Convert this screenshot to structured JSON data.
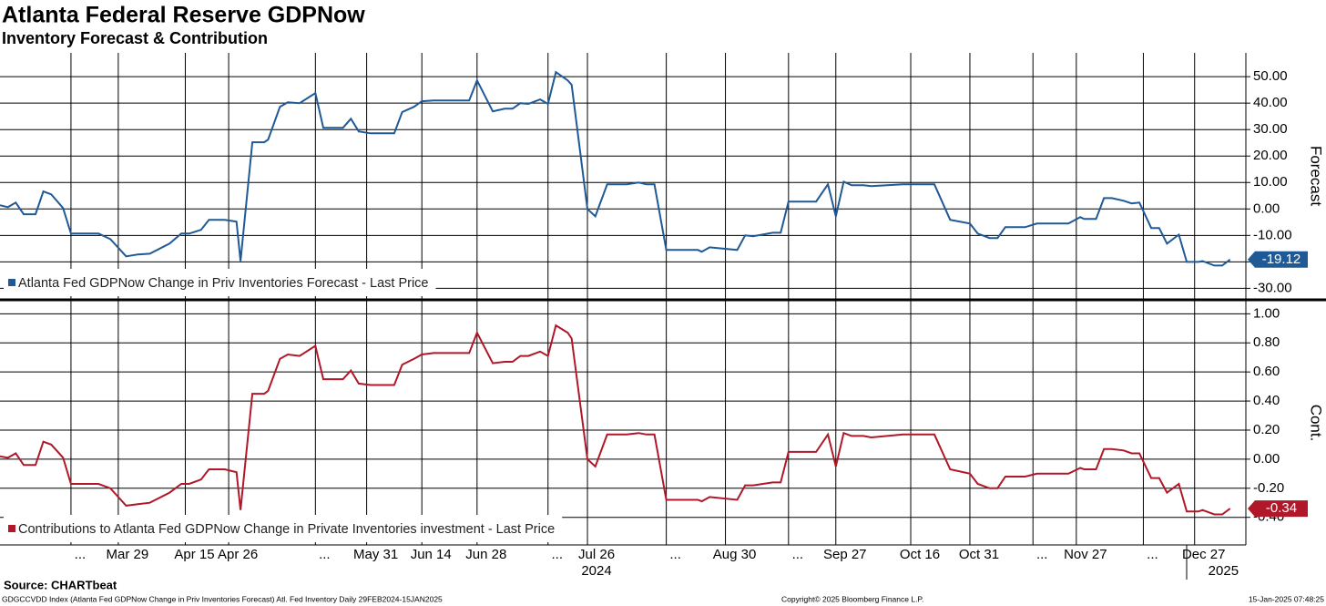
{
  "chart_data": [
    {
      "type": "line",
      "title": "Atlanta Federal Reserve GDPNow",
      "subtitle": "Inventory Forecast & Contribution",
      "y_label": "Forecast",
      "x": [
        "2024-02-28",
        "2024-03-01",
        "2024-03-03",
        "2024-03-05",
        "2024-03-08",
        "2024-03-10",
        "2024-03-12",
        "2024-03-15",
        "2024-03-17",
        "2024-03-24",
        "2024-03-27",
        "2024-03-31",
        "2024-04-03",
        "2024-04-06",
        "2024-04-11",
        "2024-04-14",
        "2024-04-16",
        "2024-04-19",
        "2024-04-21",
        "2024-04-25",
        "2024-04-28",
        "2024-04-29",
        "2024-05-02",
        "2024-05-05",
        "2024-05-06",
        "2024-05-09",
        "2024-05-11",
        "2024-05-14",
        "2024-05-18",
        "2024-05-20",
        "2024-05-25",
        "2024-05-27",
        "2024-05-29",
        "2024-06-01",
        "2024-06-07",
        "2024-06-09",
        "2024-06-12",
        "2024-06-14",
        "2024-06-17",
        "2024-06-26",
        "2024-06-28",
        "2024-07-02",
        "2024-07-05",
        "2024-07-07",
        "2024-07-09",
        "2024-07-11",
        "2024-07-14",
        "2024-07-16",
        "2024-07-18",
        "2024-07-21",
        "2024-07-22",
        "2024-07-26",
        "2024-07-28",
        "2024-07-31",
        "2024-08-05",
        "2024-08-08",
        "2024-08-10",
        "2024-08-12",
        "2024-08-15",
        "2024-08-23",
        "2024-08-24",
        "2024-08-26",
        "2024-09-02",
        "2024-09-04",
        "2024-09-06",
        "2024-09-11",
        "2024-09-13",
        "2024-09-15",
        "2024-09-22",
        "2024-09-25",
        "2024-09-27",
        "2024-09-29",
        "2024-10-01",
        "2024-10-04",
        "2024-10-06",
        "2024-10-10",
        "2024-10-14",
        "2024-10-22",
        "2024-10-26",
        "2024-10-31",
        "2024-11-02",
        "2024-11-05",
        "2024-11-07",
        "2024-11-09",
        "2024-11-14",
        "2024-11-17",
        "2024-11-25",
        "2024-11-28",
        "2024-11-29",
        "2024-12-02",
        "2024-12-04",
        "2024-12-06",
        "2024-12-09",
        "2024-12-11",
        "2024-12-13",
        "2024-12-16",
        "2024-12-18",
        "2024-12-20",
        "2024-12-23",
        "2024-12-25",
        "2024-12-28",
        "2024-12-29",
        "2025-01-01",
        "2025-01-03",
        "2025-01-05"
      ],
      "xlim": [
        "2024-02-28",
        "2025-01-09"
      ],
      "series": [
        {
          "name": "Atlanta Fed GDPNow Change in Priv Inventories Forecast - Last Price",
          "color": "#1f5a96",
          "values": [
            1.4,
            0.7,
            2.4,
            -2,
            -2,
            6.6,
            5.5,
            0.3,
            -9.3,
            -9.3,
            -11.4,
            -17.9,
            -17.2,
            -16.9,
            -13.1,
            -9.3,
            -9.3,
            -7.9,
            -4.1,
            -4.1,
            -4.8,
            -19.7,
            25.2,
            25.2,
            26.2,
            38.6,
            40.3,
            40,
            43.8,
            30.7,
            30.7,
            34.1,
            29.3,
            28.6,
            28.6,
            36.6,
            38.6,
            40.7,
            41,
            41,
            48.6,
            36.9,
            37.9,
            37.9,
            40,
            39.7,
            41.4,
            39.7,
            51.7,
            48.6,
            46.9,
            0,
            -2.8,
            9.3,
            9.3,
            10,
            9.3,
            9.3,
            -15.5,
            -15.5,
            -16.2,
            -14.5,
            -15.5,
            -10,
            -10.3,
            -9,
            -9,
            2.8,
            2.8,
            9.3,
            -2.8,
            10.3,
            9,
            9,
            8.6,
            9,
            9.3,
            9.3,
            -4.1,
            -5.5,
            -9.3,
            -11,
            -11,
            -6.9,
            -6.9,
            -5.5,
            -5.5,
            -3.1,
            -3.8,
            -3.8,
            4.1,
            4.1,
            3.1,
            2.1,
            2.4,
            -7.2,
            -7.2,
            -13.1,
            -9.7,
            -20,
            -20,
            -19.7,
            -21.4,
            -21.4,
            -19.12
          ]
        }
      ],
      "ylim": [
        -34,
        59
      ],
      "yticks": [
        {
          "value": 50,
          "label": "50.00"
        },
        {
          "value": 40,
          "label": "40.00"
        },
        {
          "value": 30,
          "label": "30.00"
        },
        {
          "value": 20,
          "label": "20.00"
        },
        {
          "value": 10,
          "label": "10.00"
        },
        {
          "value": 0,
          "label": "0.00"
        },
        {
          "value": -10,
          "label": "-10.00"
        },
        {
          "value": -20,
          "label": "-20.00"
        },
        {
          "value": -30,
          "label": "-30.00"
        }
      ],
      "grid": true
    },
    {
      "type": "line",
      "y_label": "Cont.",
      "series": [
        {
          "name": "Contributions to Atlanta Fed GDPNow Change in Private Inventories investment - Last Price",
          "color": "#b0182a",
          "values": [
            0.02,
            0.01,
            0.04,
            -0.04,
            -0.04,
            0.12,
            0.1,
            0.01,
            -0.17,
            -0.17,
            -0.2,
            -0.32,
            -0.31,
            -0.3,
            -0.23,
            -0.17,
            -0.17,
            -0.14,
            -0.07,
            -0.07,
            -0.09,
            -0.35,
            0.45,
            0.45,
            0.47,
            0.69,
            0.72,
            0.71,
            0.78,
            0.55,
            0.55,
            0.61,
            0.52,
            0.51,
            0.51,
            0.65,
            0.69,
            0.72,
            0.73,
            0.73,
            0.87,
            0.66,
            0.67,
            0.67,
            0.71,
            0.71,
            0.74,
            0.71,
            0.92,
            0.87,
            0.83,
            0,
            -0.05,
            0.17,
            0.17,
            0.18,
            0.17,
            0.17,
            -0.28,
            -0.28,
            -0.29,
            -0.26,
            -0.28,
            -0.18,
            -0.18,
            -0.16,
            -0.16,
            0.05,
            0.05,
            0.17,
            -0.05,
            0.18,
            0.16,
            0.16,
            0.15,
            0.16,
            0.17,
            0.17,
            -0.07,
            -0.1,
            -0.17,
            -0.2,
            -0.2,
            -0.12,
            -0.12,
            -0.1,
            -0.1,
            -0.06,
            -0.07,
            -0.07,
            0.07,
            0.07,
            0.06,
            0.04,
            0.04,
            -0.13,
            -0.13,
            -0.23,
            -0.17,
            -0.36,
            -0.36,
            -0.35,
            -0.38,
            -0.38,
            -0.34
          ]
        }
      ],
      "ylim": [
        -0.59,
        1.09
      ],
      "yticks": [
        {
          "value": 1,
          "label": "1.00"
        },
        {
          "value": 0.8,
          "label": "0.80"
        },
        {
          "value": 0.6,
          "label": "0.60"
        },
        {
          "value": 0.4,
          "label": "0.40"
        },
        {
          "value": 0.2,
          "label": "0.20"
        },
        {
          "value": 0,
          "label": "0.00"
        },
        {
          "value": -0.2,
          "label": "-0.20"
        },
        {
          "value": -0.4,
          "label": "-0.40"
        }
      ],
      "xticks": [
        {
          "value": "2024-03-17",
          "label": "..."
        },
        {
          "value": "2024-03-29",
          "label": "Mar 29"
        },
        {
          "value": "2024-04-15",
          "label": "Apr 15"
        },
        {
          "value": "2024-04-26",
          "label": "Apr 26"
        },
        {
          "value": "2024-05-18",
          "label": "..."
        },
        {
          "value": "2024-05-31",
          "label": "May 31"
        },
        {
          "value": "2024-06-14",
          "label": "Jun 14"
        },
        {
          "value": "2024-06-28",
          "label": "Jun 28"
        },
        {
          "value": "2024-07-16",
          "label": "..."
        },
        {
          "value": "2024-07-26",
          "label": "Jul 26"
        },
        {
          "value": "2024-08-15",
          "label": "..."
        },
        {
          "value": "2024-08-30",
          "label": "Aug 30"
        },
        {
          "value": "2024-09-15",
          "label": "..."
        },
        {
          "value": "2024-09-27",
          "label": "Sep 27"
        },
        {
          "value": "2024-10-16",
          "label": "Oct 16"
        },
        {
          "value": "2024-10-31",
          "label": "Oct 31"
        },
        {
          "value": "2024-11-16",
          "label": "..."
        },
        {
          "value": "2024-11-27",
          "label": "Nov 27"
        },
        {
          "value": "2024-12-14",
          "label": "..."
        },
        {
          "value": "2024-12-27",
          "label": "Dec 27"
        }
      ],
      "year_labels": [
        {
          "value": "2024-07-26",
          "label": "2024"
        },
        {
          "value": "2025-01-01",
          "label": "2025"
        }
      ],
      "grid": true
    }
  ],
  "footer": {
    "source": "Source: CHARTbeat",
    "description": "GDGCCVDD Index (Atlanta Fed GDPNow Change in Priv Inventories Forecast) Atl. Fed Inventory  Daily 29FEB2024-15JAN2025",
    "copyright": "Copyright© 2025 Bloomberg Finance L.P.",
    "timestamp": "15-Jan-2025 07:48:25"
  }
}
